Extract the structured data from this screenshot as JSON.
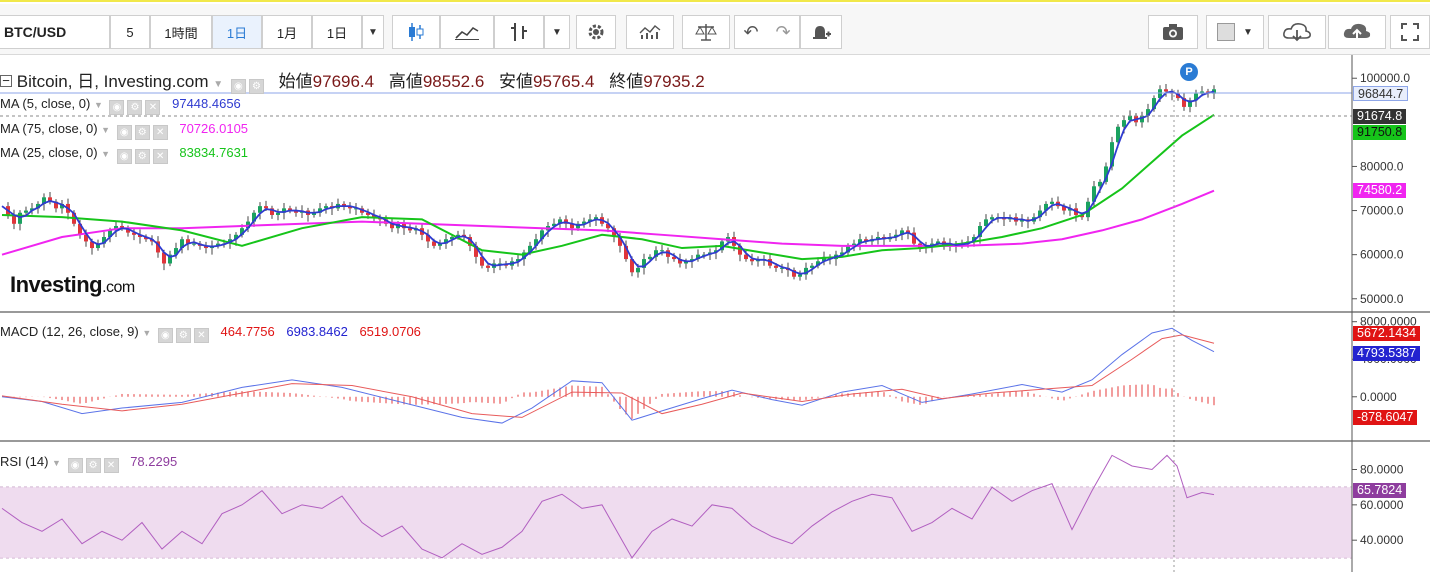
{
  "toolbar": {
    "symbol": "BTC/USD",
    "intervals": [
      "5",
      "1時間",
      "1日",
      "1月",
      "1日"
    ],
    "selected_interval": "1日"
  },
  "header": {
    "title": "Bitcoin, 日, Investing.com",
    "ohlc": [
      {
        "label": "始値",
        "value": "97696.4"
      },
      {
        "label": "高値",
        "value": "98552.6"
      },
      {
        "label": "安値",
        "value": "95765.4"
      },
      {
        "label": "終値",
        "value": "97935.2"
      }
    ]
  },
  "indicators": {
    "ma5": {
      "label": "MA (5, close, 0)",
      "value": "97448.4656",
      "color": "#2f3bd0"
    },
    "ma75": {
      "label": "MA (75, close, 0)",
      "value": "70726.0105",
      "color": "#f025f0"
    },
    "ma25": {
      "label": "MA (25, close, 0)",
      "value": "83834.7631",
      "color": "#16c41a"
    },
    "macd": {
      "label": "MACD (12, 26, close, 9)",
      "hist": "464.7756",
      "macd_val": "6983.8462",
      "signal": "6519.0706"
    },
    "rsi": {
      "label": "RSI (14)",
      "value": "78.2295",
      "color": "#8e3d9e"
    }
  },
  "price_tags": {
    "last": "96844.7",
    "dotted": "91674.8",
    "ma25": "91750.8",
    "ma75": "74580.2"
  },
  "macd_tags": {
    "a": "5672.1434",
    "b": "4793.5387",
    "hist": "-878.6047"
  },
  "rsi_tags": {
    "value": "65.7824"
  },
  "logo": {
    "text": "Investing",
    "suffix": ".com"
  },
  "marker": "P",
  "colors": {
    "accent": "#2a7bd4",
    "up": "#1aa260",
    "down": "#e0353b"
  },
  "chart_data": {
    "type": "candlestick",
    "price_axis": {
      "ticks": [
        50000,
        60000,
        70000,
        80000,
        90000,
        100000
      ],
      "tick_labels": [
        "50000.0",
        "60000.0",
        "70000.0",
        "80000.0",
        "100000.0"
      ],
      "ylim": [
        47000,
        103000
      ]
    },
    "close_points": [
      [
        0,
        71000
      ],
      [
        6,
        69000
      ],
      [
        12,
        67000
      ],
      [
        18,
        69500
      ],
      [
        24,
        70000
      ],
      [
        30,
        70500
      ],
      [
        36,
        71500
      ],
      [
        42,
        73000
      ],
      [
        48,
        72000
      ],
      [
        54,
        70500
      ],
      [
        60,
        71500
      ],
      [
        66,
        69500
      ],
      [
        72,
        67000
      ],
      [
        78,
        64500
      ],
      [
        84,
        63000
      ],
      [
        90,
        61500
      ],
      [
        96,
        62500
      ],
      [
        102,
        64000
      ],
      [
        108,
        65500
      ],
      [
        114,
        66500
      ],
      [
        120,
        66000
      ],
      [
        126,
        65000
      ],
      [
        132,
        64500
      ],
      [
        138,
        64000
      ],
      [
        144,
        63500
      ],
      [
        150,
        63000
      ],
      [
        156,
        60500
      ],
      [
        162,
        58000
      ],
      [
        168,
        60000
      ],
      [
        174,
        61500
      ],
      [
        180,
        63500
      ],
      [
        186,
        62500
      ],
      [
        192,
        62500
      ],
      [
        198,
        62000
      ],
      [
        204,
        61500
      ],
      [
        210,
        62000
      ],
      [
        216,
        62500
      ],
      [
        222,
        62500
      ],
      [
        228,
        63500
      ],
      [
        234,
        64500
      ],
      [
        240,
        66000
      ],
      [
        246,
        67500
      ],
      [
        252,
        69500
      ],
      [
        258,
        71000
      ],
      [
        264,
        70500
      ],
      [
        270,
        69000
      ],
      [
        276,
        69500
      ],
      [
        282,
        70500
      ],
      [
        288,
        70000
      ],
      [
        294,
        69500
      ],
      [
        300,
        70000
      ],
      [
        306,
        69000
      ],
      [
        312,
        69500
      ],
      [
        318,
        70500
      ],
      [
        324,
        71000
      ],
      [
        330,
        70500
      ],
      [
        336,
        71500
      ],
      [
        342,
        71000
      ],
      [
        348,
        70500
      ],
      [
        354,
        70500
      ],
      [
        360,
        69500
      ],
      [
        366,
        69000
      ],
      [
        372,
        68500
      ],
      [
        378,
        68000
      ],
      [
        384,
        67000
      ],
      [
        390,
        66000
      ],
      [
        396,
        67000
      ],
      [
        402,
        66000
      ],
      [
        408,
        65500
      ],
      [
        414,
        66000
      ],
      [
        420,
        64500
      ],
      [
        426,
        63000
      ],
      [
        432,
        62000
      ],
      [
        438,
        62500
      ],
      [
        444,
        63500
      ],
      [
        450,
        64000
      ],
      [
        456,
        64500
      ],
      [
        462,
        64000
      ],
      [
        468,
        62000
      ],
      [
        474,
        59500
      ],
      [
        480,
        57500
      ],
      [
        486,
        57000
      ],
      [
        492,
        58000
      ],
      [
        498,
        58000
      ],
      [
        504,
        57500
      ],
      [
        510,
        58500
      ],
      [
        516,
        59000
      ],
      [
        522,
        60500
      ],
      [
        528,
        62000
      ],
      [
        534,
        63500
      ],
      [
        540,
        65500
      ],
      [
        546,
        66500
      ],
      [
        552,
        67000
      ],
      [
        558,
        68000
      ],
      [
        564,
        67000
      ],
      [
        570,
        66000
      ],
      [
        576,
        67000
      ],
      [
        582,
        67500
      ],
      [
        588,
        68000
      ],
      [
        594,
        68500
      ],
      [
        600,
        67000
      ],
      [
        606,
        66000
      ],
      [
        612,
        64000
      ],
      [
        618,
        62000
      ],
      [
        624,
        59000
      ],
      [
        630,
        56000
      ],
      [
        636,
        57000
      ],
      [
        642,
        59000
      ],
      [
        648,
        59500
      ],
      [
        654,
        61000
      ],
      [
        660,
        61000
      ],
      [
        666,
        59500
      ],
      [
        672,
        59000
      ],
      [
        678,
        58000
      ],
      [
        684,
        58500
      ],
      [
        690,
        59000
      ],
      [
        696,
        60000
      ],
      [
        702,
        60000
      ],
      [
        708,
        60500
      ],
      [
        714,
        61000
      ],
      [
        720,
        63000
      ],
      [
        726,
        64000
      ],
      [
        732,
        62000
      ],
      [
        738,
        60000
      ],
      [
        744,
        59000
      ],
      [
        750,
        58500
      ],
      [
        756,
        59000
      ],
      [
        762,
        59000
      ],
      [
        768,
        57500
      ],
      [
        774,
        57000
      ],
      [
        780,
        57000
      ],
      [
        786,
        56500
      ],
      [
        792,
        55000
      ],
      [
        798,
        55500
      ],
      [
        804,
        57000
      ],
      [
        810,
        57500
      ],
      [
        816,
        58500
      ],
      [
        822,
        59500
      ],
      [
        828,
        59000
      ],
      [
        834,
        60000
      ],
      [
        840,
        60500
      ],
      [
        846,
        62000
      ],
      [
        852,
        62500
      ],
      [
        858,
        63500
      ],
      [
        864,
        63000
      ],
      [
        870,
        63500
      ],
      [
        876,
        64000
      ],
      [
        882,
        63500
      ],
      [
        888,
        64000
      ],
      [
        894,
        64500
      ],
      [
        900,
        65500
      ],
      [
        906,
        65000
      ],
      [
        912,
        62500
      ],
      [
        918,
        61500
      ],
      [
        924,
        62000
      ],
      [
        930,
        62500
      ],
      [
        936,
        63000
      ],
      [
        942,
        62000
      ],
      [
        948,
        62500
      ],
      [
        954,
        62000
      ],
      [
        960,
        62500
      ],
      [
        966,
        63000
      ],
      [
        972,
        64000
      ],
      [
        978,
        66500
      ],
      [
        984,
        68000
      ],
      [
        990,
        68500
      ],
      [
        996,
        68500
      ],
      [
        1002,
        68000
      ],
      [
        1008,
        68500
      ],
      [
        1014,
        67500
      ],
      [
        1020,
        68000
      ],
      [
        1026,
        67500
      ],
      [
        1032,
        68500
      ],
      [
        1038,
        70000
      ],
      [
        1044,
        71500
      ],
      [
        1050,
        72000
      ],
      [
        1056,
        71000
      ],
      [
        1062,
        70000
      ],
      [
        1068,
        70500
      ],
      [
        1074,
        69000
      ],
      [
        1080,
        68500
      ],
      [
        1086,
        72000
      ],
      [
        1092,
        75500
      ],
      [
        1098,
        76500
      ],
      [
        1104,
        80000
      ],
      [
        1110,
        85500
      ],
      [
        1116,
        89000
      ],
      [
        1122,
        90500
      ],
      [
        1128,
        91500
      ],
      [
        1134,
        90000
      ],
      [
        1140,
        91500
      ],
      [
        1146,
        93000
      ],
      [
        1152,
        95500
      ],
      [
        1158,
        97500
      ],
      [
        1164,
        97000
      ],
      [
        1170,
        96500
      ],
      [
        1176,
        95500
      ],
      [
        1182,
        93500
      ],
      [
        1188,
        95000
      ],
      [
        1194,
        96500
      ],
      [
        1200,
        97000
      ],
      [
        1206,
        96500
      ],
      [
        1212,
        97500
      ]
    ],
    "ma25_points": [
      [
        0,
        69000
      ],
      [
        60,
        68500
      ],
      [
        120,
        67500
      ],
      [
        180,
        65500
      ],
      [
        240,
        62000
      ],
      [
        300,
        66000
      ],
      [
        360,
        68500
      ],
      [
        420,
        68000
      ],
      [
        480,
        61000
      ],
      [
        520,
        60000
      ],
      [
        560,
        62000
      ],
      [
        600,
        64500
      ],
      [
        640,
        63500
      ],
      [
        680,
        61500
      ],
      [
        720,
        62000
      ],
      [
        760,
        60500
      ],
      [
        800,
        59000
      ],
      [
        840,
        59500
      ],
      [
        880,
        61000
      ],
      [
        920,
        61500
      ],
      [
        960,
        62500
      ],
      [
        1000,
        64000
      ],
      [
        1040,
        66000
      ],
      [
        1080,
        69000
      ],
      [
        1120,
        75000
      ],
      [
        1150,
        81000
      ],
      [
        1180,
        87000
      ],
      [
        1212,
        91700
      ]
    ],
    "ma75_points": [
      [
        0,
        60000
      ],
      [
        60,
        64000
      ],
      [
        120,
        66000
      ],
      [
        180,
        66000
      ],
      [
        240,
        66500
      ],
      [
        300,
        67000
      ],
      [
        360,
        67500
      ],
      [
        420,
        67000
      ],
      [
        480,
        66500
      ],
      [
        540,
        66000
      ],
      [
        600,
        65500
      ],
      [
        660,
        64500
      ],
      [
        720,
        63500
      ],
      [
        780,
        62500
      ],
      [
        840,
        62000
      ],
      [
        900,
        62000
      ],
      [
        960,
        62000
      ],
      [
        1020,
        62500
      ],
      [
        1060,
        63500
      ],
      [
        1100,
        65500
      ],
      [
        1140,
        68000
      ],
      [
        1180,
        71500
      ],
      [
        1212,
        74500
      ]
    ],
    "macd_axis": {
      "tick_labels": [
        "8000.0000",
        "4000.0000",
        "0.0000"
      ]
    },
    "macd_line": [
      [
        0,
        0
      ],
      [
        40,
        -500
      ],
      [
        80,
        -1800
      ],
      [
        120,
        -1200
      ],
      [
        180,
        -600
      ],
      [
        240,
        1000
      ],
      [
        290,
        1800
      ],
      [
        340,
        1000
      ],
      [
        400,
        -600
      ],
      [
        460,
        -2200
      ],
      [
        500,
        -2800
      ],
      [
        530,
        -1200
      ],
      [
        570,
        1700
      ],
      [
        600,
        1500
      ],
      [
        630,
        -2500
      ],
      [
        660,
        -1500
      ],
      [
        700,
        -200
      ],
      [
        730,
        700
      ],
      [
        770,
        -300
      ],
      [
        800,
        -900
      ],
      [
        840,
        500
      ],
      [
        880,
        1200
      ],
      [
        920,
        -600
      ],
      [
        970,
        300
      ],
      [
        1020,
        1300
      ],
      [
        1060,
        500
      ],
      [
        1090,
        1800
      ],
      [
        1120,
        4500
      ],
      [
        1150,
        6800
      ],
      [
        1170,
        7300
      ],
      [
        1190,
        6000
      ],
      [
        1212,
        4800
      ]
    ],
    "signal_line": [
      [
        0,
        100
      ],
      [
        60,
        -800
      ],
      [
        120,
        -1500
      ],
      [
        180,
        -800
      ],
      [
        240,
        400
      ],
      [
        290,
        1400
      ],
      [
        350,
        1200
      ],
      [
        410,
        0
      ],
      [
        470,
        -1800
      ],
      [
        520,
        -2200
      ],
      [
        570,
        500
      ],
      [
        620,
        400
      ],
      [
        660,
        -1800
      ],
      [
        700,
        -800
      ],
      [
        740,
        400
      ],
      [
        800,
        -500
      ],
      [
        850,
        300
      ],
      [
        900,
        800
      ],
      [
        940,
        -200
      ],
      [
        990,
        400
      ],
      [
        1040,
        800
      ],
      [
        1090,
        1200
      ],
      [
        1130,
        4000
      ],
      [
        1160,
        6200
      ],
      [
        1180,
        6600
      ],
      [
        1212,
        5700
      ]
    ],
    "rsi_axis": {
      "tick_labels": [
        "80.0000",
        "60.0000",
        "40.0000"
      ],
      "band": [
        30,
        70
      ]
    },
    "rsi_points": [
      [
        0,
        58
      ],
      [
        20,
        50
      ],
      [
        40,
        45
      ],
      [
        60,
        52
      ],
      [
        80,
        38
      ],
      [
        100,
        45
      ],
      [
        120,
        40
      ],
      [
        140,
        50
      ],
      [
        160,
        35
      ],
      [
        180,
        45
      ],
      [
        200,
        38
      ],
      [
        220,
        55
      ],
      [
        240,
        60
      ],
      [
        260,
        68
      ],
      [
        280,
        55
      ],
      [
        300,
        60
      ],
      [
        320,
        58
      ],
      [
        340,
        65
      ],
      [
        360,
        50
      ],
      [
        380,
        42
      ],
      [
        400,
        48
      ],
      [
        420,
        35
      ],
      [
        440,
        30
      ],
      [
        460,
        38
      ],
      [
        480,
        32
      ],
      [
        500,
        36
      ],
      [
        520,
        45
      ],
      [
        540,
        62
      ],
      [
        560,
        66
      ],
      [
        580,
        58
      ],
      [
        600,
        60
      ],
      [
        620,
        40
      ],
      [
        630,
        30
      ],
      [
        650,
        45
      ],
      [
        670,
        52
      ],
      [
        690,
        48
      ],
      [
        710,
        60
      ],
      [
        730,
        58
      ],
      [
        750,
        48
      ],
      [
        770,
        42
      ],
      [
        790,
        38
      ],
      [
        810,
        48
      ],
      [
        830,
        56
      ],
      [
        850,
        62
      ],
      [
        870,
        66
      ],
      [
        890,
        64
      ],
      [
        910,
        45
      ],
      [
        930,
        50
      ],
      [
        950,
        58
      ],
      [
        970,
        52
      ],
      [
        990,
        70
      ],
      [
        1010,
        62
      ],
      [
        1030,
        68
      ],
      [
        1050,
        72
      ],
      [
        1070,
        46
      ],
      [
        1090,
        68
      ],
      [
        1110,
        88
      ],
      [
        1130,
        82
      ],
      [
        1150,
        80
      ],
      [
        1165,
        88
      ],
      [
        1175,
        82
      ],
      [
        1185,
        64
      ],
      [
        1200,
        67
      ],
      [
        1212,
        65.8
      ]
    ]
  }
}
